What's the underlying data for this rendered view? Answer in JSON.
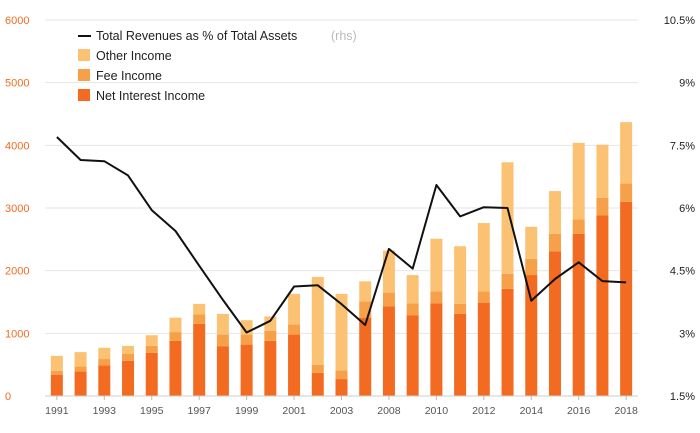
{
  "chart_data": {
    "type": "bar",
    "stacked": true,
    "x": [
      "1991",
      "1992",
      "1993",
      "1994",
      "1995",
      "1996",
      "1997",
      "1998",
      "1999",
      "2000",
      "2001",
      "2002",
      "2003",
      "2004",
      "2008",
      "2009",
      "2010",
      "2011",
      "2012",
      "2013",
      "2014",
      "2015",
      "2016",
      "2017",
      "2018"
    ],
    "x_tick_labels": [
      "1991",
      "1993",
      "1995",
      "1997",
      "1999",
      "2001",
      "2003",
      "2008",
      "2010",
      "2012",
      "2014",
      "2016",
      "2018"
    ],
    "series": [
      {
        "name": "Net Interest Income",
        "color": "#f26b21",
        "values": [
          340,
          390,
          490,
          560,
          690,
          880,
          1150,
          790,
          820,
          880,
          980,
          370,
          270,
          1250,
          1430,
          1290,
          1480,
          1310,
          1490,
          1710,
          1930,
          2310,
          2590,
          2880,
          3100
        ]
      },
      {
        "name": "Fee Income",
        "color": "#f7a04a",
        "values": [
          60,
          80,
          100,
          110,
          110,
          140,
          150,
          190,
          160,
          160,
          160,
          130,
          140,
          260,
          220,
          190,
          190,
          160,
          180,
          240,
          260,
          280,
          230,
          280,
          290
        ]
      },
      {
        "name": "Other Income",
        "color": "#fcc274",
        "values": [
          240,
          230,
          180,
          130,
          170,
          230,
          170,
          330,
          230,
          230,
          490,
          1400,
          1220,
          320,
          670,
          450,
          840,
          920,
          1090,
          1780,
          510,
          680,
          1220,
          850,
          980
        ]
      }
    ],
    "line_series": {
      "name": "Total Revenues as % of Total Assets",
      "suffix": "(rhs)",
      "color": "#111111",
      "axis": "right",
      "values": [
        7.7,
        7.15,
        7.12,
        6.78,
        5.95,
        5.45,
        4.62,
        3.8,
        3.02,
        3.3,
        4.12,
        4.15,
        3.7,
        3.2,
        5.02,
        4.55,
        6.55,
        5.8,
        6.02,
        6.0,
        3.78,
        4.3,
        4.7,
        4.25,
        4.22
      ]
    },
    "ylim": [
      0,
      6000
    ],
    "yticks": [
      "0",
      "1000",
      "2000",
      "3000",
      "4000",
      "5000",
      "6000"
    ],
    "y2lim": [
      1.5,
      10.5
    ],
    "y2ticks": [
      "1.5%",
      "3%",
      "4.5%",
      "6%",
      "7.5%",
      "9%",
      "10.5%"
    ],
    "y2tick_values": [
      1.5,
      3,
      4.5,
      6,
      7.5,
      9,
      10.5
    ],
    "grid": true,
    "legend_position": "top-left"
  }
}
